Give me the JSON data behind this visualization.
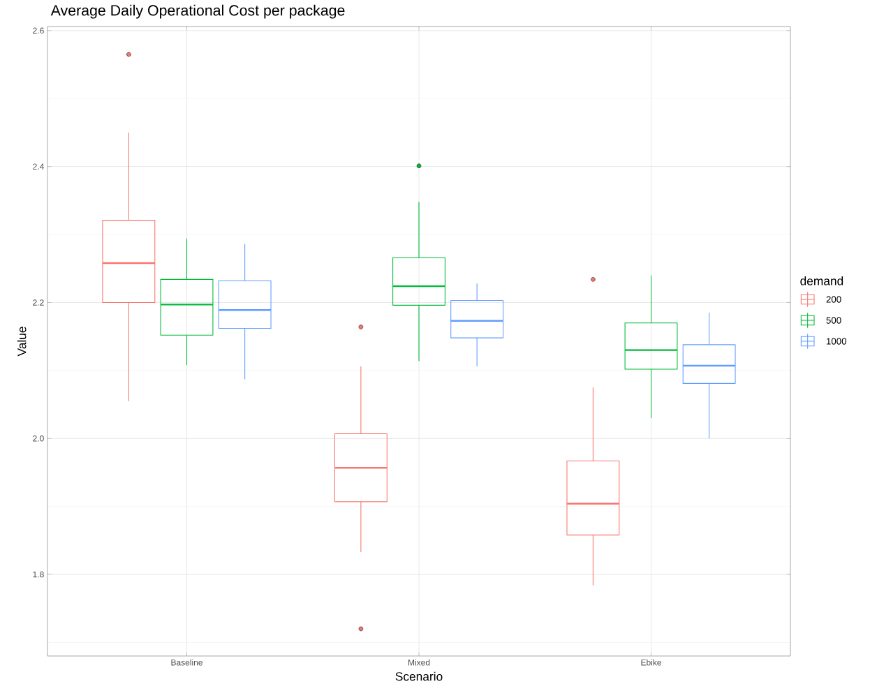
{
  "chart_data": {
    "type": "box",
    "title": "Average Daily Operational Cost per package",
    "xlabel": "Scenario",
    "ylabel": "Value",
    "legend_title": "demand",
    "categories": [
      "Baseline",
      "Mixed",
      "Ebike"
    ],
    "ylim": [
      1.68,
      2.606
    ],
    "yticks": [
      1.8,
      {
        "value": 2.0,
        "label": "2.0"
      },
      2.2,
      2.4,
      2.6
    ],
    "grid": true,
    "legend": "right",
    "series": [
      {
        "name": "200",
        "color": "#f8766d",
        "boxes": [
          {
            "low": 2.055,
            "q1": 2.2,
            "median": 2.258,
            "q3": 2.321,
            "high": 2.45,
            "outliers": [
              2.565
            ]
          },
          {
            "low": 1.833,
            "q1": 1.907,
            "median": 1.957,
            "q3": 2.007,
            "high": 2.106,
            "outliers": [
              2.164,
              1.72
            ]
          },
          {
            "low": 1.784,
            "q1": 1.858,
            "median": 1.904,
            "q3": 1.967,
            "high": 2.075,
            "outliers": [
              2.234
            ]
          }
        ]
      },
      {
        "name": "500",
        "color": "#00ba38",
        "boxes": [
          {
            "low": 2.108,
            "q1": 2.152,
            "median": 2.197,
            "q3": 2.234,
            "high": 2.294
          },
          {
            "low": 2.114,
            "q1": 2.196,
            "median": 2.224,
            "q3": 2.266,
            "high": 2.348,
            "outliers": [
              2.401
            ]
          },
          {
            "low": 2.03,
            "q1": 2.102,
            "median": 2.13,
            "q3": 2.17,
            "high": 2.24
          }
        ]
      },
      {
        "name": "1000",
        "color": "#619cff",
        "boxes": [
          {
            "low": 2.087,
            "q1": 2.162,
            "median": 2.189,
            "q3": 2.232,
            "high": 2.286
          },
          {
            "low": 2.106,
            "q1": 2.148,
            "median": 2.173,
            "q3": 2.203,
            "high": 2.228
          },
          {
            "low": 2.0,
            "q1": 2.081,
            "median": 2.107,
            "q3": 2.138,
            "high": 2.185
          }
        ]
      }
    ]
  }
}
